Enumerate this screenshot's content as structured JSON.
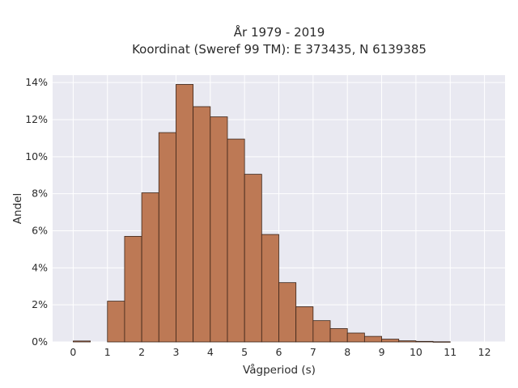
{
  "chart_data": {
    "type": "bar",
    "title_line1": "År 1979 - 2019",
    "title_line2": "Koordinat (Sweref 99 TM): E 373435, N 6139385",
    "xlabel": "Vågperiod (s)",
    "ylabel": "Andel",
    "x_ticks": [
      "0",
      "1",
      "2",
      "3",
      "4",
      "5",
      "6",
      "7",
      "8",
      "9",
      "10",
      "11",
      "12"
    ],
    "y_ticks": [
      "0%",
      "2%",
      "4%",
      "6%",
      "8%",
      "10%",
      "12%",
      "14%"
    ],
    "xlim": [
      -0.6,
      12.6
    ],
    "ylim": [
      0,
      14.4
    ],
    "bin_width": 0.5,
    "bin_starts": [
      0,
      1,
      1.5,
      2,
      2.5,
      3,
      3.5,
      4,
      4.5,
      5,
      5.5,
      6,
      6.5,
      7,
      7.5,
      8,
      8.5,
      9,
      9.5,
      10,
      10.5
    ],
    "values": [
      0.05,
      2.2,
      5.7,
      8.05,
      11.3,
      13.9,
      12.7,
      12.15,
      10.95,
      9.05,
      5.8,
      3.2,
      1.9,
      1.15,
      0.72,
      0.48,
      0.3,
      0.15,
      0.06,
      0.03,
      0.01
    ],
    "grid": true,
    "colors": {
      "bar_fill": "#bd7955",
      "bar_edge": "#3a2418",
      "plot_bg": "#e9e9f1",
      "grid": "#ffffff"
    }
  }
}
